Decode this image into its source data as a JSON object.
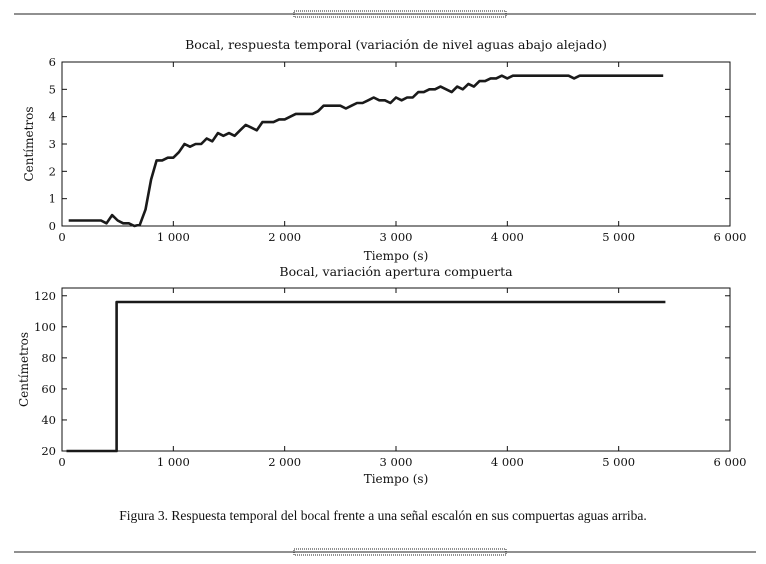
{
  "caption": "Figura 3. Respuesta temporal del bocal frente a una señal escalón en sus compuertas aguas arriba.",
  "chart_data": [
    {
      "type": "line",
      "title": "Bocal, respuesta temporal (variación de nivel aguas abajo alejado)",
      "xlabel": "Tiempo (s)",
      "ylabel": "Centímetros",
      "xlim": [
        0,
        6000
      ],
      "ylim": [
        0,
        6
      ],
      "xticks": [
        0,
        1000,
        2000,
        3000,
        4000,
        5000,
        6000
      ],
      "xtick_labels": [
        "0",
        "1 000",
        "2 000",
        "3 000",
        "4 000",
        "5 000",
        "6 000"
      ],
      "yticks": [
        0,
        1,
        2,
        3,
        4,
        5,
        6
      ],
      "ytick_labels": [
        "0",
        "1",
        "2",
        "3",
        "4",
        "5",
        "6"
      ],
      "grid": false,
      "series": [
        {
          "x": [
            60,
            100,
            200,
            300,
            350,
            400,
            450,
            500,
            550,
            600,
            650,
            700,
            750,
            800,
            850,
            900,
            950,
            1000,
            1050,
            1100,
            1150,
            1200,
            1250,
            1300,
            1350,
            1400,
            1450,
            1500,
            1550,
            1600,
            1650,
            1700,
            1750,
            1800,
            1850,
            1900,
            1950,
            2000,
            2050,
            2100,
            2150,
            2200,
            2250,
            2300,
            2350,
            2400,
            2450,
            2500,
            2550,
            2600,
            2650,
            2700,
            2750,
            2800,
            2850,
            2900,
            2950,
            3000,
            3050,
            3100,
            3150,
            3200,
            3250,
            3300,
            3350,
            3400,
            3450,
            3500,
            3550,
            3600,
            3650,
            3700,
            3750,
            3800,
            3850,
            3900,
            3950,
            4000,
            4050,
            4100,
            4150,
            4200,
            4250,
            4300,
            4350,
            4400,
            4450,
            4500,
            4550,
            4600,
            4650,
            4700,
            4750,
            4800,
            4900,
            5000,
            5100,
            5200,
            5300,
            5350,
            5400
          ],
          "y": [
            0.2,
            0.2,
            0.2,
            0.2,
            0.2,
            0.1,
            0.4,
            0.2,
            0.1,
            0.1,
            0.0,
            0.05,
            0.6,
            1.7,
            2.4,
            2.4,
            2.5,
            2.5,
            2.7,
            3.0,
            2.9,
            3.0,
            3.0,
            3.2,
            3.1,
            3.4,
            3.3,
            3.4,
            3.3,
            3.5,
            3.7,
            3.6,
            3.5,
            3.8,
            3.8,
            3.8,
            3.9,
            3.9,
            4.0,
            4.1,
            4.1,
            4.1,
            4.1,
            4.2,
            4.4,
            4.4,
            4.4,
            4.4,
            4.3,
            4.4,
            4.5,
            4.5,
            4.6,
            4.7,
            4.6,
            4.6,
            4.5,
            4.7,
            4.6,
            4.7,
            4.7,
            4.9,
            4.9,
            5.0,
            5.0,
            5.1,
            5.0,
            4.9,
            5.1,
            5.0,
            5.2,
            5.1,
            5.3,
            5.3,
            5.4,
            5.4,
            5.5,
            5.4,
            5.5,
            5.5,
            5.5,
            5.5,
            5.5,
            5.5,
            5.5,
            5.5,
            5.5,
            5.5,
            5.5,
            5.4,
            5.5,
            5.5,
            5.5,
            5.5,
            5.5,
            5.5,
            5.5,
            5.5,
            5.5,
            5.5,
            5.5
          ]
        }
      ]
    },
    {
      "type": "line",
      "title": "Bocal, variación apertura compuerta",
      "xlabel": "Tiempo (s)",
      "ylabel": "Centímetros",
      "xlim": [
        0,
        6000
      ],
      "ylim": [
        20,
        125
      ],
      "xticks": [
        0,
        1000,
        2000,
        3000,
        4000,
        5000,
        6000
      ],
      "xtick_labels": [
        "0",
        "1 000",
        "2 000",
        "3 000",
        "4 000",
        "5 000",
        "6 000"
      ],
      "yticks": [
        20,
        40,
        60,
        80,
        100,
        120
      ],
      "ytick_labels": [
        "20",
        "40",
        "60",
        "80",
        "100",
        "120"
      ],
      "grid": false,
      "series": [
        {
          "x": [
            40,
            490,
            490,
            5420
          ],
          "y": [
            20,
            20,
            116,
            116
          ]
        }
      ]
    }
  ]
}
